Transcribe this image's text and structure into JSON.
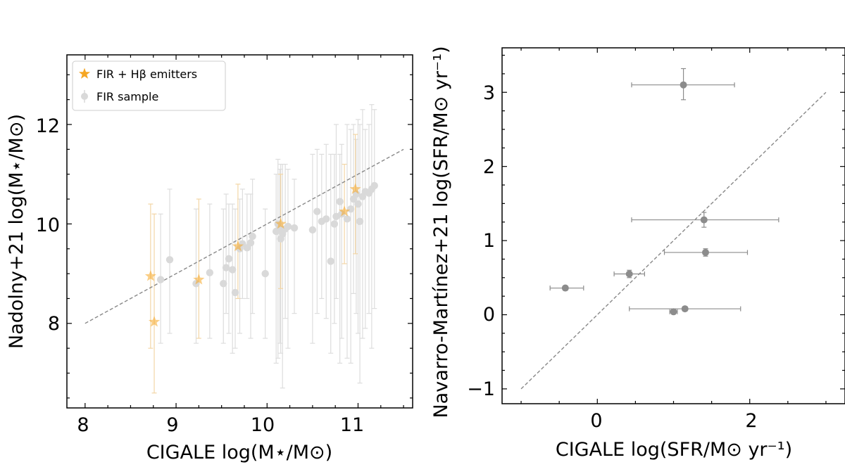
{
  "chart_data": [
    {
      "type": "scatter",
      "xlabel": "CIGALE log(M⋆/M⊙)",
      "ylabel": "Nadolny+21 log(M⋆/M⊙)",
      "xlim": [
        7.8,
        11.6
      ],
      "ylim": [
        6.3,
        13.4
      ],
      "xticks": [
        8,
        9,
        10,
        11
      ],
      "yticks": [
        8,
        10,
        12
      ],
      "grid": false,
      "legend_position": "top-left",
      "one_to_one_line": {
        "x": [
          8.0,
          11.5
        ],
        "y": [
          8.0,
          11.5
        ],
        "style": "dashed",
        "color": "#888888"
      },
      "series": [
        {
          "name": "FIR sample",
          "marker": "circle",
          "color": "#d9d9d9",
          "x": [
            8.83,
            8.93,
            9.22,
            9.37,
            9.52,
            9.55,
            9.58,
            9.62,
            9.65,
            9.7,
            9.73,
            9.78,
            9.82,
            9.84,
            9.98,
            10.1,
            10.12,
            10.14,
            10.15,
            10.17,
            10.2,
            10.23,
            10.3,
            10.5,
            10.55,
            10.6,
            10.65,
            10.7,
            10.74,
            10.76,
            10.8,
            10.82,
            10.88,
            10.92,
            10.95,
            10.98,
            11.0,
            11.02,
            11.05,
            11.08,
            11.12,
            11.15,
            11.18
          ],
          "y": [
            8.88,
            9.28,
            8.8,
            9.02,
            8.8,
            9.12,
            9.3,
            9.08,
            8.62,
            9.5,
            9.6,
            9.52,
            9.62,
            9.75,
            9.0,
            9.85,
            10.0,
            9.9,
            9.7,
            9.8,
            9.9,
            9.95,
            9.92,
            9.88,
            10.25,
            10.05,
            10.1,
            9.25,
            10.0,
            10.15,
            10.45,
            10.2,
            10.1,
            10.3,
            10.5,
            10.6,
            10.4,
            10.05,
            10.55,
            10.65,
            10.62,
            10.7,
            10.77
          ],
          "ylo": [
            7.6,
            7.8,
            7.6,
            7.7,
            7.6,
            8.2,
            7.8,
            7.4,
            7.5,
            7.8,
            8.5,
            8.5,
            7.7,
            8.2,
            7.7,
            7.2,
            7.3,
            7.6,
            7.4,
            6.7,
            8.1,
            7.5,
            8.2,
            7.6,
            8.2,
            8.5,
            8.1,
            7.4,
            8.0,
            8.5,
            7.2,
            7.7,
            7.3,
            7.2,
            8.6,
            8.2,
            7.8,
            6.8,
            7.7,
            7.9,
            8.2,
            7.5,
            8.3
          ],
          "yhi": [
            10.2,
            10.7,
            10.3,
            10.4,
            10.3,
            10.6,
            10.4,
            10.4,
            10.3,
            10.5,
            10.7,
            10.6,
            10.6,
            10.9,
            10.3,
            11.0,
            11.3,
            11.1,
            11.2,
            11.2,
            11.2,
            11.1,
            10.9,
            11.4,
            11.5,
            11.4,
            11.6,
            11.4,
            11.4,
            12.0,
            11.4,
            11.6,
            12.0,
            11.9,
            12.0,
            11.7,
            12.1,
            12.0,
            12.3,
            11.9,
            12.0,
            12.4,
            12.3
          ]
        },
        {
          "name": "FIR + Hβ emitters",
          "marker": "star",
          "color": "#f5a623",
          "alpha": 0.55,
          "x": [
            8.72,
            8.76,
            9.25,
            9.68,
            10.15,
            10.85,
            10.97
          ],
          "y": [
            8.95,
            8.03,
            8.88,
            9.55,
            10.0,
            10.25,
            10.7
          ],
          "ylo": [
            7.5,
            6.6,
            7.7,
            8.5,
            8.7,
            9.2,
            9.4
          ],
          "yhi": [
            10.4,
            10.2,
            10.5,
            10.8,
            11.0,
            11.2,
            11.8
          ]
        }
      ]
    },
    {
      "type": "scatter",
      "xlabel": "CIGALE log(SFR/M⊙ yr⁻¹)",
      "ylabel": "Navarro-Martínez+21 log(SFR/M⊙ yr⁻¹)",
      "xlim": [
        -1.25,
        3.25
      ],
      "ylim": [
        -1.2,
        3.6
      ],
      "xticks": [
        0,
        2
      ],
      "yticks": [
        -1,
        0,
        1,
        2,
        3
      ],
      "grid": false,
      "one_to_one_line": {
        "x": [
          -1.0,
          3.0
        ],
        "y": [
          -1.0,
          3.0
        ],
        "style": "dashed",
        "color": "#888888"
      },
      "series": [
        {
          "marker": "circle",
          "color": "#8c8c8c",
          "x": [
            1.13,
            1.4,
            1.42,
            0.42,
            -0.42,
            1.0,
            1.15
          ],
          "y": [
            3.1,
            1.28,
            0.84,
            0.55,
            0.36,
            0.04,
            0.08
          ],
          "xlo": [
            0.45,
            0.45,
            0.88,
            0.22,
            -0.62,
            0.95,
            0.42
          ],
          "xhi": [
            1.8,
            2.38,
            1.97,
            0.62,
            -0.18,
            1.05,
            1.88
          ],
          "ylo": [
            2.9,
            1.18,
            0.79,
            0.5,
            0.33,
            0.01,
            0.05
          ],
          "yhi": [
            3.32,
            1.38,
            0.89,
            0.6,
            0.39,
            0.07,
            0.11
          ]
        }
      ]
    }
  ]
}
